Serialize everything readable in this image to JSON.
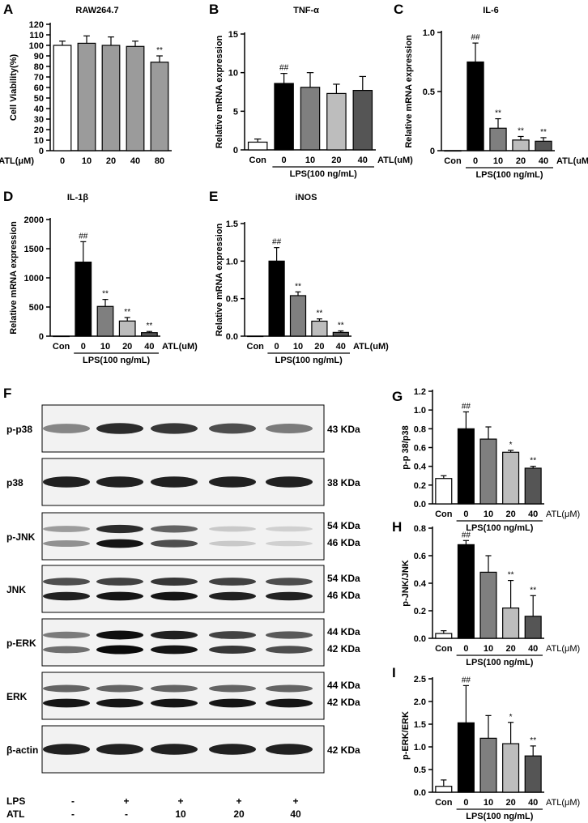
{
  "colors": {
    "con": "#ffffff",
    "lps0": "#000000",
    "atl10": "#7f7f7f",
    "atl20": "#bdbdbd",
    "atl40": "#555555",
    "viability": "#9b9b9b",
    "bar_stroke": "#000000"
  },
  "lps_label": "LPS(100 ng/mL)",
  "chart_data": [
    {
      "panel": "A",
      "type": "bar",
      "title": "RAW264.7",
      "ylabel": "Cell Viability(%)",
      "xlabel": "ATL(μM)",
      "categories": [
        "0",
        "10",
        "20",
        "40",
        "80"
      ],
      "values": [
        100,
        102,
        100,
        99,
        84
      ],
      "errors": [
        4,
        7,
        8,
        5,
        6
      ],
      "sig": [
        "",
        "",
        "",
        "",
        "**"
      ],
      "ylim": [
        0,
        120
      ],
      "yticks": [
        "0",
        "10",
        "20",
        "30",
        "40",
        "50",
        "60",
        "70",
        "80",
        "90",
        "100",
        "110",
        "120"
      ]
    },
    {
      "panel": "B",
      "type": "bar",
      "title": "TNF-α",
      "ylabel": "Relative mRNA expression",
      "xlabel": "ATL(uM)",
      "categories": [
        "Con",
        "0",
        "10",
        "20",
        "40"
      ],
      "values": [
        1.0,
        8.6,
        8.1,
        7.3,
        7.7
      ],
      "errors": [
        0.4,
        1.3,
        1.9,
        1.2,
        1.8
      ],
      "sig": [
        "",
        "##",
        "",
        "",
        ""
      ],
      "ylim": [
        0,
        15
      ],
      "yticks": [
        "0",
        "5",
        "10",
        "15"
      ]
    },
    {
      "panel": "C",
      "type": "bar",
      "title": "IL-6",
      "ylabel": "Relative mRNA expression",
      "xlabel": "ATL(uM)",
      "categories": [
        "Con",
        "0",
        "10",
        "20",
        "40"
      ],
      "values": [
        0.0,
        0.75,
        0.19,
        0.09,
        0.08
      ],
      "errors": [
        0.0,
        0.16,
        0.08,
        0.03,
        0.03
      ],
      "sig": [
        "",
        "##",
        "**",
        "**",
        "**"
      ],
      "ylim": [
        0,
        1.0
      ],
      "yticks": [
        "0",
        "0.5",
        "1.0"
      ]
    },
    {
      "panel": "D",
      "type": "bar",
      "title": "IL-1β",
      "ylabel": "Relative mRNA expression",
      "xlabel": "ATL(uM)",
      "categories": [
        "Con",
        "0",
        "10",
        "20",
        "40"
      ],
      "values": [
        0,
        1270,
        510,
        260,
        60
      ],
      "errors": [
        0,
        350,
        120,
        60,
        20
      ],
      "sig": [
        "",
        "##",
        "**",
        "**",
        "**"
      ],
      "ylim": [
        0,
        2000
      ],
      "yticks": [
        "0",
        "500",
        "1000",
        "1500",
        "2000"
      ]
    },
    {
      "panel": "E",
      "type": "bar",
      "title": "iNOS",
      "ylabel": "Relative mRNA expression",
      "xlabel": "ATL(uM)",
      "categories": [
        "Con",
        "0",
        "10",
        "20",
        "40"
      ],
      "values": [
        0.0,
        1.0,
        0.54,
        0.2,
        0.05
      ],
      "errors": [
        0.0,
        0.18,
        0.05,
        0.03,
        0.02
      ],
      "sig": [
        "",
        "##",
        "**",
        "**",
        "**"
      ],
      "ylim": [
        0,
        1.5
      ],
      "yticks": [
        "0.0",
        "0.5",
        "1.0",
        "1.5"
      ]
    },
    {
      "panel": "G",
      "type": "bar",
      "ylabel": "p-p 38/p38",
      "xlabel": "ATL(μM)",
      "categories": [
        "Con",
        "0",
        "10",
        "20",
        "40"
      ],
      "values": [
        0.27,
        0.8,
        0.69,
        0.55,
        0.38
      ],
      "errors": [
        0.03,
        0.18,
        0.13,
        0.02,
        0.02
      ],
      "sig": [
        "",
        "##",
        "",
        "*",
        "**"
      ],
      "ylim": [
        0,
        1.2
      ],
      "yticks": [
        "0.0",
        "0.2",
        "0.4",
        "0.6",
        "0.8",
        "1.0",
        "1.2"
      ]
    },
    {
      "panel": "H",
      "type": "bar",
      "ylabel": "p-JNK/JNK",
      "xlabel": "ATL(μM)",
      "categories": [
        "Con",
        "0",
        "10",
        "20",
        "40"
      ],
      "values": [
        0.035,
        0.68,
        0.48,
        0.22,
        0.16
      ],
      "errors": [
        0.02,
        0.03,
        0.12,
        0.2,
        0.15
      ],
      "sig": [
        "",
        "##",
        "",
        "**",
        "**"
      ],
      "ylim": [
        0,
        0.8
      ],
      "yticks": [
        "0.0",
        "0.2",
        "0.4",
        "0.6",
        "0.8"
      ]
    },
    {
      "panel": "I",
      "type": "bar",
      "ylabel": "p-ERK/ERK",
      "xlabel": "ATL(μM)",
      "categories": [
        "Con",
        "0",
        "10",
        "20",
        "40"
      ],
      "values": [
        0.13,
        1.53,
        1.19,
        1.07,
        0.8
      ],
      "errors": [
        0.14,
        0.82,
        0.5,
        0.47,
        0.22
      ],
      "sig": [
        "",
        "##",
        "",
        "*",
        "**"
      ],
      "ylim": [
        0,
        2.5
      ],
      "yticks": [
        "0.0",
        "0.5",
        "1.0",
        "1.5",
        "2.0",
        "2.5"
      ]
    }
  ],
  "western_blot": {
    "panel": "F",
    "rows": [
      {
        "label": "p-p38",
        "kda": [
          "43 KDa"
        ],
        "bands": [
          {
            "intensity": [
              0.45,
              0.85,
              0.8,
              0.7,
              0.5
            ]
          }
        ]
      },
      {
        "label": "p38",
        "kda": [
          "38 KDa"
        ],
        "bands": [
          {
            "intensity": [
              0.9,
              0.9,
              0.9,
              0.9,
              0.9
            ]
          }
        ]
      },
      {
        "label": "p-JNK",
        "kda": [
          "54 KDa",
          "46 KDa"
        ],
        "bands": [
          {
            "intensity": [
              0.35,
              0.85,
              0.6,
              0.15,
              0.12
            ]
          },
          {
            "intensity": [
              0.4,
              0.95,
              0.7,
              0.15,
              0.12
            ]
          }
        ]
      },
      {
        "label": "JNK",
        "kda": [
          "54 KDa",
          "46 KDa"
        ],
        "bands": [
          {
            "intensity": [
              0.7,
              0.75,
              0.8,
              0.75,
              0.7
            ]
          },
          {
            "intensity": [
              0.9,
              0.95,
              0.95,
              0.9,
              0.9
            ]
          }
        ]
      },
      {
        "label": "p-ERK",
        "kda": [
          "44 KDa",
          "42 KDa"
        ],
        "bands": [
          {
            "intensity": [
              0.5,
              0.98,
              0.9,
              0.75,
              0.65
            ]
          },
          {
            "intensity": [
              0.55,
              1.0,
              0.95,
              0.8,
              0.7
            ]
          }
        ]
      },
      {
        "label": "ERK",
        "kda": [
          "44 KDa",
          "42 KDa"
        ],
        "bands": [
          {
            "intensity": [
              0.6,
              0.6,
              0.6,
              0.6,
              0.6
            ]
          },
          {
            "intensity": [
              0.95,
              0.95,
              0.95,
              0.95,
              0.95
            ]
          }
        ]
      },
      {
        "label": "β-actin",
        "kda": [
          "42 KDa"
        ],
        "bands": [
          {
            "intensity": [
              0.9,
              0.9,
              0.9,
              0.9,
              0.9
            ]
          }
        ]
      }
    ],
    "lps_label": "LPS",
    "lps": [
      "-",
      "+",
      "+",
      "+",
      "+"
    ],
    "atl_label": "ATL",
    "atl": [
      "-",
      "-",
      "10",
      "20",
      "40"
    ]
  }
}
